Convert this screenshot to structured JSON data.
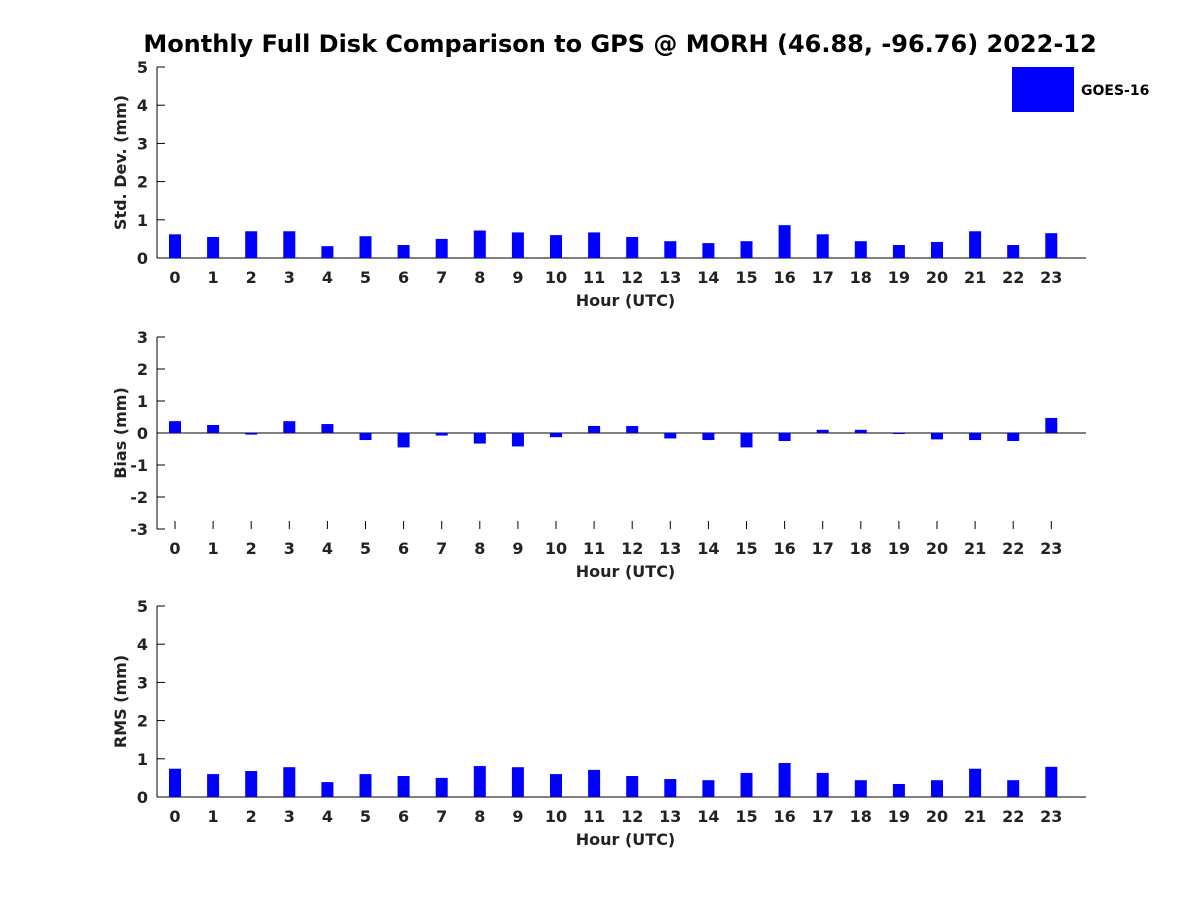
{
  "title": "Monthly Full Disk Comparison to GPS @ MORH (46.88, -96.76) 2022-12",
  "chart_data": [
    {
      "type": "bar",
      "id": "std",
      "xlabel": "Hour (UTC)",
      "ylabel": "Std. Dev. (mm)",
      "ylim": [
        0,
        5
      ],
      "yticks": [
        0,
        1,
        2,
        3,
        4,
        5
      ],
      "categories": [
        "0",
        "1",
        "2",
        "3",
        "4",
        "5",
        "6",
        "7",
        "8",
        "9",
        "10",
        "11",
        "12",
        "13",
        "14",
        "15",
        "16",
        "17",
        "18",
        "19",
        "20",
        "21",
        "22",
        "23"
      ],
      "series": [
        {
          "name": "GOES-16",
          "values": [
            0.62,
            0.55,
            0.7,
            0.7,
            0.31,
            0.57,
            0.34,
            0.5,
            0.72,
            0.67,
            0.6,
            0.67,
            0.55,
            0.44,
            0.39,
            0.44,
            0.86,
            0.62,
            0.44,
            0.34,
            0.42,
            0.7,
            0.34,
            0.65
          ]
        }
      ],
      "color": "#0000ff",
      "grid": false,
      "legend": "top-right"
    },
    {
      "type": "bar",
      "id": "bias",
      "xlabel": "Hour (UTC)",
      "ylabel": "Bias (mm)",
      "ylim": [
        -3,
        3
      ],
      "yticks": [
        -3,
        -2,
        -1,
        0,
        1,
        2,
        3
      ],
      "categories": [
        "0",
        "1",
        "2",
        "3",
        "4",
        "5",
        "6",
        "7",
        "8",
        "9",
        "10",
        "11",
        "12",
        "13",
        "14",
        "15",
        "16",
        "17",
        "18",
        "19",
        "20",
        "21",
        "22",
        "23"
      ],
      "series": [
        {
          "name": "GOES-16",
          "values": [
            0.37,
            0.25,
            -0.05,
            0.37,
            0.28,
            -0.22,
            -0.45,
            -0.08,
            -0.33,
            -0.42,
            -0.13,
            0.22,
            0.22,
            -0.17,
            -0.22,
            -0.45,
            -0.25,
            0.1,
            0.1,
            -0.02,
            -0.2,
            -0.22,
            -0.25,
            0.47
          ]
        }
      ],
      "color": "#0000ff",
      "grid": false
    },
    {
      "type": "bar",
      "id": "rms",
      "xlabel": "Hour (UTC)",
      "ylabel": "RMS (mm)",
      "ylim": [
        0,
        5
      ],
      "yticks": [
        0,
        1,
        2,
        3,
        4,
        5
      ],
      "categories": [
        "0",
        "1",
        "2",
        "3",
        "4",
        "5",
        "6",
        "7",
        "8",
        "9",
        "10",
        "11",
        "12",
        "13",
        "14",
        "15",
        "16",
        "17",
        "18",
        "19",
        "20",
        "21",
        "22",
        "23"
      ],
      "series": [
        {
          "name": "GOES-16",
          "values": [
            0.74,
            0.6,
            0.68,
            0.78,
            0.39,
            0.6,
            0.55,
            0.5,
            0.81,
            0.78,
            0.6,
            0.71,
            0.55,
            0.47,
            0.44,
            0.63,
            0.89,
            0.63,
            0.44,
            0.34,
            0.44,
            0.74,
            0.44,
            0.79
          ]
        }
      ],
      "color": "#0000ff",
      "grid": false
    }
  ],
  "legend": {
    "label": "GOES-16",
    "color": "#0000ff"
  }
}
